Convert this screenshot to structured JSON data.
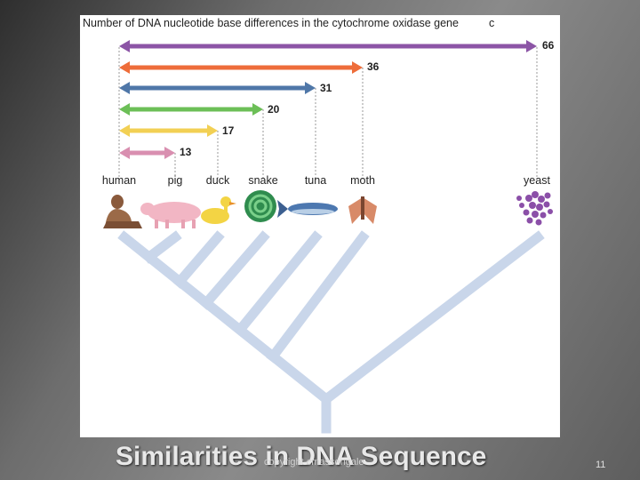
{
  "figure": {
    "title_line": "Number of DNA nucleotide base differences in the cytochrome oxidase gene",
    "title_letter": "c",
    "species": [
      {
        "id": "human",
        "label": "human"
      },
      {
        "id": "pig",
        "label": "pig"
      },
      {
        "id": "duck",
        "label": "duck"
      },
      {
        "id": "snake",
        "label": "snake"
      },
      {
        "id": "tuna",
        "label": "tuna"
      },
      {
        "id": "moth",
        "label": "moth"
      },
      {
        "id": "yeast",
        "label": "yeast"
      }
    ],
    "differences": [
      {
        "species": "yeast",
        "value": "66",
        "color": "#8c55a6"
      },
      {
        "species": "moth",
        "value": "36",
        "color": "#ee6d3a"
      },
      {
        "species": "tuna",
        "value": "31",
        "color": "#4f77a8"
      },
      {
        "species": "snake",
        "value": "20",
        "color": "#6cbf57"
      },
      {
        "species": "duck",
        "value": "17",
        "color": "#f2d054"
      },
      {
        "species": "pig",
        "value": "13",
        "color": "#d98fb0"
      }
    ],
    "tree_color": "#c9d6ea"
  },
  "slide": {
    "title": "Similarities in DNA Sequence",
    "copyright": "copyright cmassengale",
    "page_number": "11"
  }
}
